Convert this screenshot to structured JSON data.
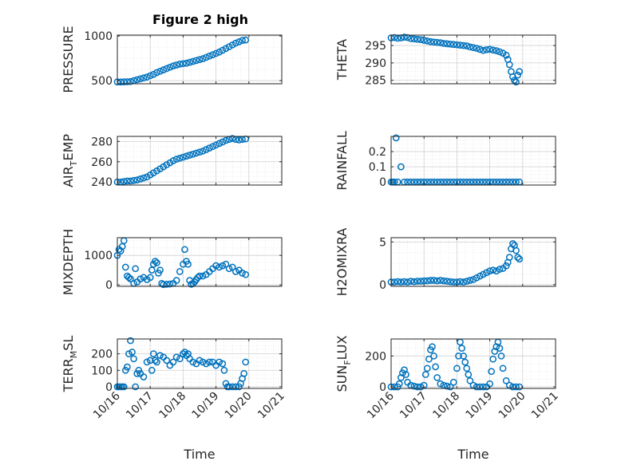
{
  "figure": {
    "title": "Figure 2 high"
  },
  "colors": {
    "marker": "#0072BD",
    "axis": "#262626",
    "grid": "#d0d0d0",
    "minor_grid": "#e3e3e3"
  },
  "xaxis": {
    "label": "Time",
    "ticks": [
      "10/16",
      "10/17",
      "10/18",
      "10/19",
      "10/20",
      "10/21"
    ],
    "range_days": [
      16,
      21
    ]
  },
  "chart_data": [
    {
      "type": "scatter",
      "ylabel": "PRESSURE",
      "title": "Figure 2 high",
      "yticks": [
        500,
        1000
      ],
      "ylim": [
        465,
        1010
      ],
      "x": [
        16.0,
        16.1,
        16.2,
        16.3,
        16.4,
        16.5,
        16.6,
        16.7,
        16.8,
        16.9,
        17.0,
        17.1,
        17.2,
        17.3,
        17.4,
        17.5,
        17.6,
        17.7,
        17.8,
        17.9,
        18.0,
        18.1,
        18.2,
        18.3,
        18.4,
        18.5,
        18.6,
        18.7,
        18.8,
        18.9,
        19.0,
        19.1,
        19.2,
        19.3,
        19.4,
        19.5,
        19.6,
        19.7,
        19.8,
        19.9
      ],
      "y": [
        485,
        485,
        486,
        488,
        490,
        500,
        510,
        520,
        530,
        540,
        555,
        570,
        590,
        605,
        620,
        635,
        650,
        665,
        675,
        685,
        690,
        695,
        705,
        715,
        725,
        735,
        745,
        760,
        775,
        790,
        805,
        820,
        840,
        860,
        880,
        900,
        920,
        935,
        950,
        955
      ]
    },
    {
      "type": "scatter",
      "ylabel": "THETA",
      "yticks": [
        285,
        290,
        295
      ],
      "ylim": [
        284,
        298
      ],
      "x": [
        16.0,
        16.1,
        16.2,
        16.3,
        16.4,
        16.5,
        16.6,
        16.7,
        16.8,
        16.9,
        17.0,
        17.1,
        17.2,
        17.3,
        17.4,
        17.5,
        17.6,
        17.7,
        17.8,
        17.9,
        18.0,
        18.1,
        18.2,
        18.3,
        18.4,
        18.5,
        18.6,
        18.7,
        18.8,
        18.9,
        19.0,
        19.1,
        19.2,
        19.3,
        19.4,
        19.5,
        19.55,
        19.6,
        19.65,
        19.7,
        19.75,
        19.8,
        19.85,
        19.9
      ],
      "y": [
        297.2,
        297.3,
        297.1,
        297.2,
        297.4,
        297.3,
        297.0,
        296.9,
        296.8,
        296.7,
        296.5,
        296.3,
        296.1,
        296.0,
        295.9,
        295.8,
        295.6,
        295.5,
        295.4,
        295.3,
        295.2,
        295.1,
        295.0,
        294.9,
        294.6,
        294.4,
        294.2,
        293.9,
        293.6,
        293.8,
        293.9,
        293.7,
        293.5,
        293.2,
        292.8,
        292.2,
        291.0,
        289.5,
        287.5,
        286.0,
        285.0,
        284.5,
        286.5,
        287.5
      ]
    },
    {
      "type": "scatter",
      "ylabel": "AIR_TEMP",
      "ylabel_main": "AIR",
      "ylabel_sub": "T",
      "ylabel_rest": "EMP",
      "yticks": [
        240,
        260,
        280
      ],
      "ylim": [
        237,
        285
      ],
      "x": [
        16.0,
        16.1,
        16.2,
        16.3,
        16.4,
        16.5,
        16.6,
        16.7,
        16.8,
        16.9,
        17.0,
        17.1,
        17.2,
        17.3,
        17.4,
        17.5,
        17.6,
        17.7,
        17.8,
        17.9,
        18.0,
        18.1,
        18.2,
        18.3,
        18.4,
        18.5,
        18.6,
        18.7,
        18.8,
        18.9,
        19.0,
        19.1,
        19.2,
        19.3,
        19.4,
        19.5,
        19.6,
        19.7,
        19.8,
        19.9
      ],
      "y": [
        240,
        240,
        240.5,
        241,
        241,
        241.5,
        242,
        243,
        244,
        245,
        247,
        249,
        251,
        253,
        255,
        257,
        259,
        261,
        262.5,
        263.5,
        264.5,
        265.5,
        266.5,
        267.5,
        268.5,
        269.5,
        270.5,
        272,
        273.5,
        275,
        276.5,
        278,
        279.5,
        281,
        282,
        283,
        282,
        281.5,
        282,
        282.5
      ]
    },
    {
      "type": "scatter",
      "ylabel": "RAINFALL",
      "yticks": [
        0,
        0.1,
        0.2
      ],
      "ytick_labels": [
        "0",
        "0.1",
        "0.2"
      ],
      "ylim": [
        -0.02,
        0.3
      ],
      "x": [
        16.0,
        16.05,
        16.1,
        16.15,
        16.2,
        16.3,
        16.4,
        16.5,
        16.6,
        16.7,
        16.8,
        16.9,
        17.0,
        17.1,
        17.2,
        17.3,
        17.4,
        17.5,
        17.6,
        17.7,
        17.8,
        17.9,
        18.0,
        18.1,
        18.2,
        18.3,
        18.4,
        18.5,
        18.6,
        18.7,
        18.8,
        18.9,
        19.0,
        19.1,
        19.2,
        19.3,
        19.4,
        19.5,
        19.6,
        19.7,
        19.8,
        19.9
      ],
      "y": [
        0,
        0,
        0,
        0.29,
        0,
        0.1,
        0,
        0,
        0,
        0,
        0,
        0,
        0,
        0,
        0,
        0,
        0,
        0,
        0,
        0,
        0,
        0,
        0,
        0,
        0,
        0,
        0,
        0,
        0,
        0,
        0,
        0,
        0,
        0,
        0,
        0,
        0,
        0,
        0,
        0,
        0,
        0
      ]
    },
    {
      "type": "scatter",
      "ylabel": "MIXDEPTH",
      "yticks": [
        0,
        1000
      ],
      "ylim": [
        -50,
        1600
      ],
      "x": [
        16.0,
        16.05,
        16.1,
        16.15,
        16.2,
        16.25,
        16.3,
        16.35,
        16.4,
        16.5,
        16.55,
        16.6,
        16.7,
        16.8,
        16.9,
        17.0,
        17.05,
        17.1,
        17.15,
        17.2,
        17.25,
        17.3,
        17.35,
        17.4,
        17.5,
        17.6,
        17.7,
        17.8,
        17.9,
        18.0,
        18.05,
        18.1,
        18.15,
        18.2,
        18.25,
        18.3,
        18.35,
        18.4,
        18.45,
        18.5,
        18.6,
        18.7,
        18.8,
        18.9,
        19.0,
        19.1,
        19.2,
        19.3,
        19.4,
        19.5,
        19.6,
        19.7,
        19.8,
        19.9
      ],
      "y": [
        1000,
        1200,
        1150,
        1300,
        1500,
        600,
        300,
        250,
        200,
        50,
        550,
        100,
        200,
        250,
        180,
        250,
        500,
        700,
        800,
        750,
        400,
        500,
        50,
        10,
        20,
        30,
        50,
        150,
        450,
        700,
        1200,
        800,
        700,
        150,
        20,
        50,
        100,
        180,
        250,
        300,
        300,
        350,
        450,
        550,
        650,
        600,
        650,
        700,
        550,
        600,
        450,
        500,
        400,
        350
      ]
    },
    {
      "type": "scatter",
      "ylabel": "H2OMIXRA",
      "yticks": [
        0,
        5
      ],
      "ylim": [
        -0.2,
        5.5
      ],
      "x": [
        16.0,
        16.1,
        16.2,
        16.3,
        16.4,
        16.5,
        16.6,
        16.7,
        16.8,
        16.9,
        17.0,
        17.1,
        17.2,
        17.3,
        17.4,
        17.5,
        17.6,
        17.7,
        17.8,
        17.9,
        18.0,
        18.1,
        18.2,
        18.3,
        18.4,
        18.5,
        18.6,
        18.7,
        18.8,
        18.9,
        19.0,
        19.1,
        19.2,
        19.3,
        19.4,
        19.5,
        19.55,
        19.6,
        19.65,
        19.7,
        19.75,
        19.8,
        19.85,
        19.9
      ],
      "y": [
        0.3,
        0.3,
        0.35,
        0.3,
        0.35,
        0.3,
        0.4,
        0.35,
        0.4,
        0.4,
        0.45,
        0.45,
        0.5,
        0.5,
        0.45,
        0.5,
        0.45,
        0.4,
        0.35,
        0.3,
        0.3,
        0.35,
        0.3,
        0.4,
        0.5,
        0.6,
        0.8,
        1.0,
        1.2,
        1.4,
        1.6,
        1.7,
        1.6,
        1.8,
        1.9,
        2.2,
        2.6,
        3.2,
        4.2,
        4.8,
        4.6,
        4.0,
        3.2,
        3.0
      ]
    },
    {
      "type": "scatter",
      "ylabel": "TERR_MSL",
      "ylabel_main": "TERR",
      "ylabel_sub": "M",
      "ylabel_rest": "SL",
      "yticks": [
        0,
        100,
        200
      ],
      "ylim": [
        -10,
        290
      ],
      "x": [
        16.0,
        16.05,
        16.1,
        16.15,
        16.2,
        16.25,
        16.3,
        16.35,
        16.4,
        16.45,
        16.5,
        16.55,
        16.6,
        16.65,
        16.7,
        16.8,
        16.9,
        17.0,
        17.05,
        17.1,
        17.15,
        17.2,
        17.3,
        17.4,
        17.5,
        17.6,
        17.7,
        17.8,
        17.9,
        18.0,
        18.05,
        18.1,
        18.15,
        18.2,
        18.3,
        18.4,
        18.5,
        18.6,
        18.7,
        18.8,
        18.9,
        19.0,
        19.1,
        19.2,
        19.25,
        19.3,
        19.35,
        19.4,
        19.5,
        19.6,
        19.7,
        19.75,
        19.8,
        19.85,
        19.9
      ],
      "y": [
        0,
        0,
        0,
        0,
        0,
        100,
        120,
        200,
        280,
        210,
        170,
        0,
        80,
        100,
        80,
        60,
        150,
        160,
        100,
        200,
        160,
        150,
        190,
        180,
        160,
        130,
        150,
        180,
        170,
        200,
        210,
        190,
        200,
        170,
        150,
        140,
        160,
        150,
        140,
        150,
        150,
        130,
        150,
        140,
        100,
        20,
        0,
        0,
        0,
        0,
        0,
        20,
        50,
        80,
        150
      ]
    },
    {
      "type": "scatter",
      "ylabel": "SUN_FLUX",
      "ylabel_main": "SUN",
      "ylabel_sub": "F",
      "ylabel_rest": "LUX",
      "yticks": [
        0,
        200
      ],
      "ylim": [
        -10,
        310
      ],
      "x": [
        16.0,
        16.1,
        16.2,
        16.25,
        16.3,
        16.35,
        16.4,
        16.45,
        16.5,
        16.6,
        16.7,
        16.8,
        16.9,
        17.0,
        17.05,
        17.1,
        17.15,
        17.2,
        17.25,
        17.3,
        17.35,
        17.4,
        17.5,
        17.6,
        17.7,
        17.8,
        17.9,
        18.0,
        18.05,
        18.1,
        18.15,
        18.2,
        18.25,
        18.3,
        18.35,
        18.4,
        18.5,
        18.6,
        18.7,
        18.8,
        18.9,
        19.0,
        19.05,
        19.1,
        19.15,
        19.2,
        19.25,
        19.3,
        19.35,
        19.4,
        19.5,
        19.6,
        19.7,
        19.8,
        19.9
      ],
      "y": [
        0,
        0,
        0,
        20,
        60,
        90,
        110,
        80,
        30,
        10,
        5,
        0,
        0,
        10,
        80,
        120,
        180,
        240,
        260,
        200,
        130,
        60,
        20,
        10,
        5,
        0,
        30,
        120,
        200,
        290,
        250,
        200,
        160,
        120,
        80,
        40,
        10,
        0,
        0,
        0,
        0,
        20,
        100,
        180,
        230,
        260,
        290,
        250,
        200,
        120,
        40,
        10,
        0,
        0,
        0
      ]
    }
  ]
}
